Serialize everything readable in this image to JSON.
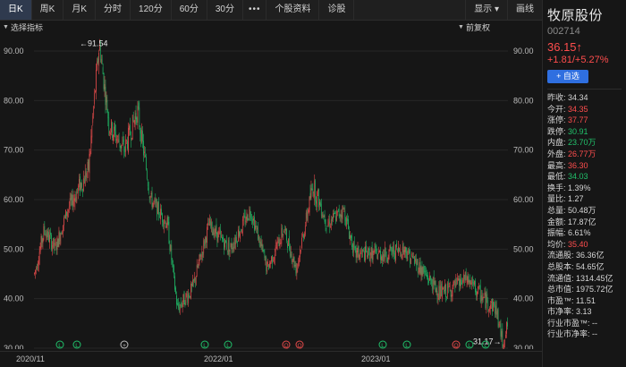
{
  "tabs": [
    {
      "label": "日K",
      "active": true
    },
    {
      "label": "周K"
    },
    {
      "label": "月K"
    },
    {
      "label": "分时"
    },
    {
      "label": "120分"
    },
    {
      "label": "60分"
    },
    {
      "label": "30分"
    },
    {
      "label": "•••"
    },
    {
      "label": "个股资料"
    },
    {
      "label": "诊股"
    }
  ],
  "right_tabs": [
    {
      "label": "显示 ▾"
    },
    {
      "label": "画线"
    }
  ],
  "indicator_select": "选择指标",
  "adjust_select": "前复权",
  "chart": {
    "y_ticks": [
      "90.00",
      "80.00",
      "70.00",
      "60.00",
      "50.00",
      "40.00",
      "30.00"
    ],
    "y_values": [
      90,
      80,
      70,
      60,
      50,
      40,
      30
    ],
    "y_min": 30,
    "y_max": 93,
    "x_labels": [
      "2020/11",
      "2022/01",
      "2023/01"
    ],
    "max_annotation": "←91.54",
    "min_annotation": "31.17→",
    "marker_labels": [
      "L",
      "L",
      "+",
      "L",
      "L",
      "Q",
      "Q",
      "L",
      "L",
      "Q",
      "L",
      "L"
    ],
    "anchors": [
      [
        0,
        45
      ],
      [
        12,
        54
      ],
      [
        25,
        50
      ],
      [
        40,
        58
      ],
      [
        65,
        66
      ],
      [
        72,
        80
      ],
      [
        78,
        91.5
      ],
      [
        90,
        75
      ],
      [
        108,
        70
      ],
      [
        124,
        78
      ],
      [
        140,
        60
      ],
      [
        160,
        55
      ],
      [
        172,
        38
      ],
      [
        190,
        42
      ],
      [
        210,
        55
      ],
      [
        235,
        50
      ],
      [
        260,
        58
      ],
      [
        280,
        46
      ],
      [
        300,
        54
      ],
      [
        315,
        46
      ],
      [
        335,
        63
      ],
      [
        352,
        55
      ],
      [
        372,
        58
      ],
      [
        385,
        49
      ],
      [
        400,
        49
      ],
      [
        420,
        49
      ],
      [
        445,
        50
      ],
      [
        465,
        46
      ],
      [
        488,
        41
      ],
      [
        502,
        42
      ],
      [
        520,
        44
      ],
      [
        540,
        40
      ],
      [
        555,
        38
      ],
      [
        563,
        31.2
      ],
      [
        570,
        35
      ]
    ],
    "up_color": "#e24a4a",
    "down_color": "#1fb565"
  },
  "stock": {
    "name": "牧原股份",
    "code": "002714",
    "price": "36.15↑",
    "change": "+1.81/+5.27%",
    "add_button": "+ 自选"
  },
  "stats": [
    {
      "k": "昨收:",
      "v": "34.34",
      "c": ""
    },
    {
      "k": "今开:",
      "v": "34.35",
      "c": "red"
    },
    {
      "k": "涨停:",
      "v": "37.77",
      "c": "red"
    },
    {
      "k": "跌停:",
      "v": "30.91",
      "c": "green"
    },
    {
      "k": "内盘:",
      "v": "23.70万",
      "c": "green"
    },
    {
      "k": "外盘:",
      "v": "26.77万",
      "c": "red"
    },
    {
      "k": "最高:",
      "v": "36.30",
      "c": "red"
    },
    {
      "k": "最低:",
      "v": "34.03",
      "c": "green"
    },
    {
      "k": "换手:",
      "v": "1.39%",
      "c": ""
    },
    {
      "k": "量比:",
      "v": "1.27",
      "c": ""
    },
    {
      "k": "总量:",
      "v": "50.48万",
      "c": ""
    },
    {
      "k": "金额:",
      "v": "17.87亿",
      "c": ""
    },
    {
      "k": "振幅:",
      "v": "6.61%",
      "c": ""
    },
    {
      "k": "均价:",
      "v": "35.40",
      "c": "red"
    },
    {
      "k": "流通股:",
      "v": "36.36亿",
      "c": ""
    },
    {
      "k": "总股本:",
      "v": "54.65亿",
      "c": ""
    },
    {
      "k": "流通值:",
      "v": "1314.45亿",
      "c": ""
    },
    {
      "k": "总市值:",
      "v": "1975.72亿",
      "c": ""
    },
    {
      "k": "市盈™:",
      "v": "11.51",
      "c": ""
    },
    {
      "k": "市净率:",
      "v": "3.13",
      "c": ""
    },
    {
      "k": "行业市盈™:",
      "v": "--",
      "c": ""
    },
    {
      "k": "行业市净率:",
      "v": "--",
      "c": ""
    }
  ]
}
